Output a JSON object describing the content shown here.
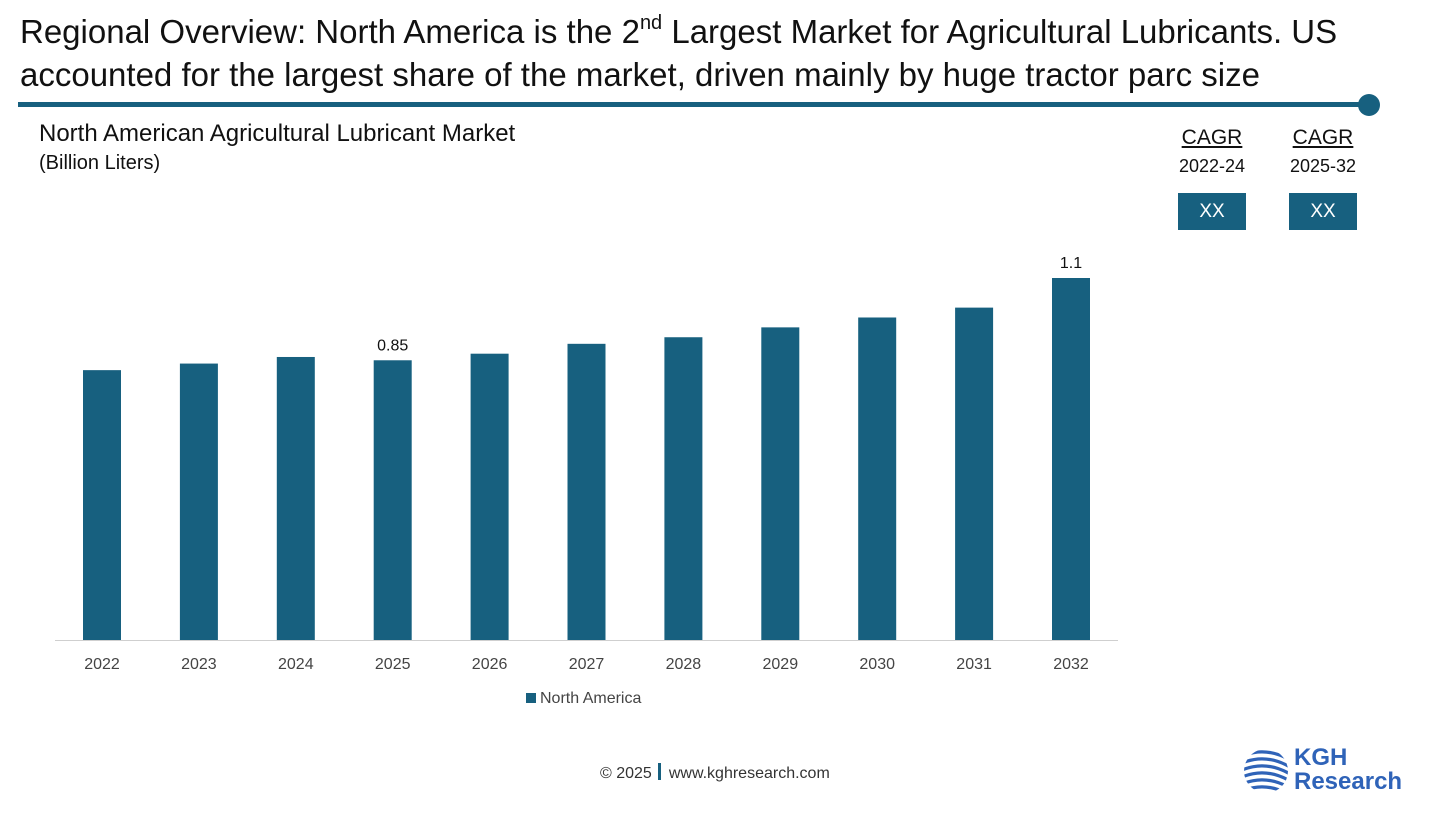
{
  "headline": {
    "part1": "Regional Overview: North America is the 2",
    "sup": "nd",
    "part2": " Largest Market for Agricultural Lubricants. US accounted for the largest share of the market, driven mainly by huge tractor parc size"
  },
  "cagr": [
    {
      "label": "CAGR",
      "period": "2022-24",
      "value": "XX"
    },
    {
      "label": "CAGR",
      "period": "2025-32",
      "value": "XX"
    }
  ],
  "footer": {
    "copyright": "© 2025",
    "url": "www.kghresearch.com"
  },
  "logo": {
    "line1": "KGH",
    "line2": "Research",
    "icon": "globe-stripes-icon"
  },
  "colors": {
    "bar": "#17607f",
    "accent": "#17607f"
  },
  "chart_data": {
    "type": "bar",
    "title": "North American Agricultural Lubricant Market",
    "subtitle": "(Billion Liters)",
    "categories": [
      "2022",
      "2023",
      "2024",
      "2025",
      "2026",
      "2027",
      "2028",
      "2029",
      "2030",
      "2031",
      "2032"
    ],
    "series": [
      {
        "name": "North America",
        "values": [
          0.82,
          0.84,
          0.86,
          0.85,
          0.87,
          0.9,
          0.92,
          0.95,
          0.98,
          1.01,
          1.1
        ]
      }
    ],
    "data_labels": {
      "3": "0.85",
      "10": "1.1"
    },
    "ylim": [
      0,
      1.1
    ],
    "grid": false,
    "legend": "bottom"
  }
}
